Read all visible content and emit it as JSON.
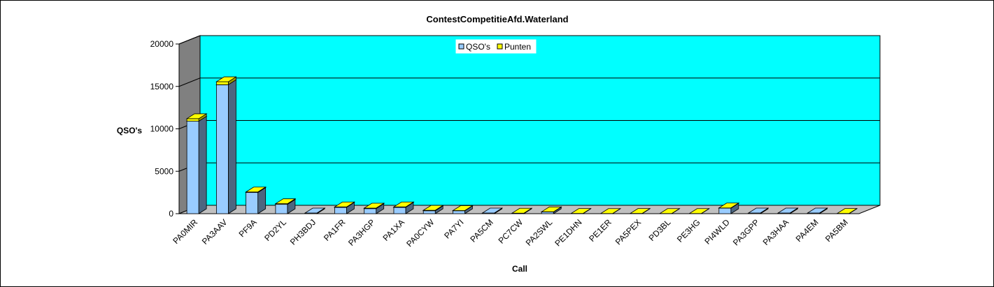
{
  "chart_data": {
    "type": "bar",
    "title": "ContestCompetitieAfd.Waterland",
    "xlabel": "Call",
    "ylabel": "QSO's",
    "ylim": [
      0,
      20000
    ],
    "yticks": [
      "0",
      "5000",
      "10000",
      "15000",
      "20000"
    ],
    "grid": true,
    "legend_position": "top",
    "categories": [
      "PA0MIR",
      "PA3AAV",
      "PF9A",
      "PD2YL",
      "PH3BDJ",
      "PA1FR",
      "PA3HGP",
      "PA1XA",
      "PA0CYW",
      "PA7YI",
      "PA5CM",
      "PC7CW",
      "PA2SWL",
      "PE1DHN",
      "PE1ER",
      "PA5PEX",
      "PD3BL",
      "PE3HG",
      "PI4WLD",
      "PA3GPP",
      "PA3HAA",
      "PA4EM",
      "PA5BM"
    ],
    "series": [
      {
        "name": "QSO's",
        "color": "#99ccff",
        "values": [
          10900,
          15200,
          2500,
          1100,
          0,
          750,
          600,
          750,
          350,
          350,
          0,
          0,
          200,
          0,
          0,
          0,
          0,
          0,
          650,
          0,
          0,
          0,
          0
        ]
      },
      {
        "name": "Punten",
        "color": "#ffff00",
        "values": [
          300,
          350,
          60,
          80,
          0,
          50,
          60,
          50,
          50,
          20,
          0,
          60,
          20,
          30,
          20,
          30,
          20,
          20,
          30,
          0,
          0,
          0,
          30
        ]
      }
    ],
    "colors": {
      "plot_area": "#00ffff",
      "floor": "#c0c0c0",
      "wall": "#808080",
      "bar_side": "#4d6680",
      "cap_side": "#999900"
    }
  }
}
